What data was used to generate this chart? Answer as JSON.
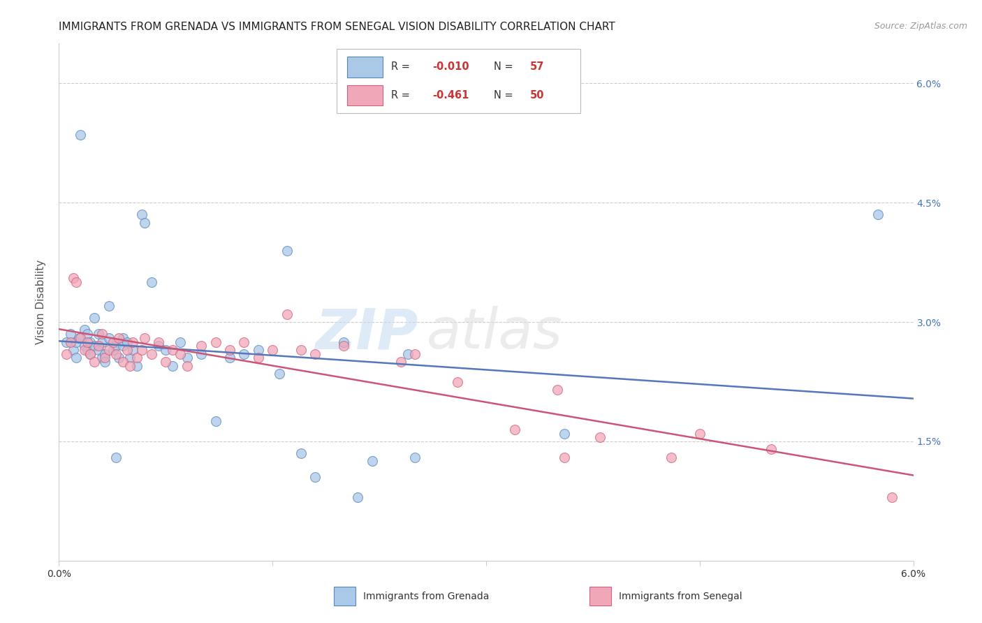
{
  "title": "IMMIGRANTS FROM GRENADA VS IMMIGRANTS FROM SENEGAL VISION DISABILITY CORRELATION CHART",
  "source": "Source: ZipAtlas.com",
  "ylabel": "Vision Disability",
  "xlim": [
    0.0,
    6.0
  ],
  "ylim": [
    0.0,
    6.5
  ],
  "color_grenada_fill": "#aac8e8",
  "color_grenada_edge": "#5588bb",
  "color_senegal_fill": "#f0a8b8",
  "color_senegal_edge": "#d06080",
  "color_line_grenada": "#5577bb",
  "color_line_senegal": "#cc5577",
  "background_color": "#ffffff",
  "watermark": "ZIPatlas",
  "legend_r1": "R = ",
  "legend_rv1": "-0.010",
  "legend_n1": "N = ",
  "legend_nv1": "57",
  "legend_r2": "R = ",
  "legend_rv2": "-0.461",
  "legend_n2": "N = ",
  "legend_nv2": "50",
  "legend_label1": "Immigrants from Grenada",
  "legend_label2": "Immigrants from Senegal",
  "grenada_x": [
    0.05,
    0.08,
    0.1,
    0.12,
    0.12,
    0.14,
    0.15,
    0.18,
    0.18,
    0.2,
    0.2,
    0.22,
    0.22,
    0.25,
    0.25,
    0.28,
    0.28,
    0.3,
    0.3,
    0.32,
    0.32,
    0.35,
    0.35,
    0.38,
    0.4,
    0.4,
    0.42,
    0.45,
    0.45,
    0.48,
    0.5,
    0.52,
    0.55,
    0.58,
    0.6,
    0.65,
    0.7,
    0.75,
    0.8,
    0.85,
    0.9,
    1.0,
    1.1,
    1.2,
    1.3,
    1.4,
    1.55,
    1.6,
    1.7,
    1.8,
    2.0,
    2.1,
    2.2,
    2.45,
    2.5,
    3.55,
    5.75
  ],
  "grenada_y": [
    2.75,
    2.85,
    2.65,
    2.75,
    2.55,
    2.8,
    5.35,
    2.7,
    2.9,
    2.65,
    2.85,
    2.75,
    2.6,
    2.7,
    3.05,
    2.65,
    2.85,
    2.55,
    2.75,
    2.6,
    2.5,
    3.2,
    2.8,
    2.65,
    2.7,
    1.3,
    2.55,
    2.8,
    2.7,
    2.75,
    2.55,
    2.65,
    2.45,
    4.35,
    4.25,
    3.5,
    2.7,
    2.65,
    2.45,
    2.75,
    2.55,
    2.6,
    1.75,
    2.55,
    2.6,
    2.65,
    2.35,
    3.9,
    1.35,
    1.05,
    2.75,
    0.8,
    1.25,
    2.6,
    1.3,
    1.6,
    4.35
  ],
  "senegal_x": [
    0.05,
    0.08,
    0.1,
    0.12,
    0.15,
    0.18,
    0.2,
    0.22,
    0.25,
    0.28,
    0.3,
    0.32,
    0.35,
    0.38,
    0.4,
    0.42,
    0.45,
    0.48,
    0.5,
    0.52,
    0.55,
    0.58,
    0.6,
    0.65,
    0.7,
    0.75,
    0.8,
    0.85,
    0.9,
    1.0,
    1.1,
    1.2,
    1.3,
    1.4,
    1.5,
    1.6,
    1.7,
    1.8,
    2.0,
    2.4,
    2.5,
    2.8,
    3.2,
    3.5,
    3.55,
    3.8,
    4.3,
    4.5,
    5.0,
    5.85
  ],
  "senegal_y": [
    2.6,
    2.75,
    3.55,
    3.5,
    2.8,
    2.65,
    2.75,
    2.6,
    2.5,
    2.7,
    2.85,
    2.55,
    2.65,
    2.75,
    2.6,
    2.8,
    2.5,
    2.65,
    2.45,
    2.75,
    2.55,
    2.65,
    2.8,
    2.6,
    2.75,
    2.5,
    2.65,
    2.6,
    2.45,
    2.7,
    2.75,
    2.65,
    2.75,
    2.55,
    2.65,
    3.1,
    2.65,
    2.6,
    2.7,
    2.5,
    2.6,
    2.25,
    1.65,
    2.15,
    1.3,
    1.55,
    1.3,
    1.6,
    1.4,
    0.8
  ],
  "title_fontsize": 11,
  "tick_fontsize": 10,
  "axis_label_fontsize": 11,
  "marker_size": 100
}
